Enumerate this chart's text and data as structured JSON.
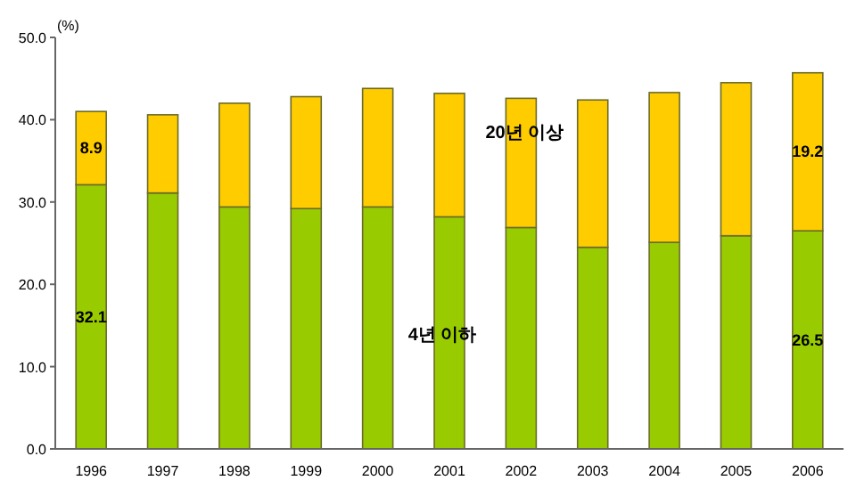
{
  "chart_data": {
    "type": "bar",
    "stacked": true,
    "ylabel": "(%)",
    "categories": [
      "1996",
      "1997",
      "1998",
      "1999",
      "2000",
      "2001",
      "2002",
      "2003",
      "2004",
      "2005",
      "2006"
    ],
    "series": [
      {
        "name": "4년 이하",
        "color": "#99cc00",
        "values": [
          32.1,
          31.1,
          29.4,
          29.2,
          29.4,
          28.2,
          26.9,
          24.5,
          25.1,
          25.9,
          26.5
        ],
        "value_labels": [
          "32.1",
          null,
          null,
          null,
          null,
          null,
          null,
          null,
          null,
          null,
          "26.5"
        ]
      },
      {
        "name": "20년 이상",
        "color": "#ffcc00",
        "values": [
          8.9,
          9.5,
          12.6,
          13.6,
          14.4,
          15.0,
          15.7,
          17.9,
          18.2,
          18.6,
          19.2
        ],
        "value_labels": [
          "8.9",
          null,
          null,
          null,
          null,
          null,
          null,
          null,
          null,
          null,
          "19.2"
        ]
      }
    ],
    "ylim": [
      0,
      50
    ],
    "yticks": [
      {
        "value": 0,
        "label": "0.0"
      },
      {
        "value": 10,
        "label": "10.0"
      },
      {
        "value": 20,
        "label": "20.0"
      },
      {
        "value": 30,
        "label": "30.0"
      },
      {
        "value": 40,
        "label": "40.0"
      },
      {
        "value": 50,
        "label": "50.0"
      }
    ],
    "grid": false,
    "legend": false
  }
}
